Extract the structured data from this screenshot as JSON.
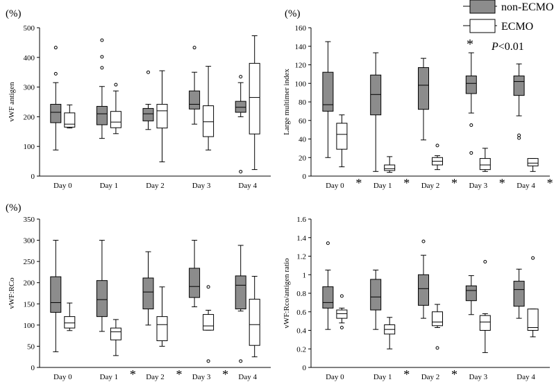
{
  "legend": {
    "items": [
      {
        "label": "non-ECMO",
        "fill": "#8c8c8c"
      },
      {
        "label": "ECMO",
        "fill": "#ffffff"
      }
    ],
    "p_note": "P<0.01",
    "p_note_italic": "P",
    "p_note_rest": "<0.01",
    "sig_marker": "*"
  },
  "colors": {
    "non_ecmo": "#8c8c8c",
    "ecmo": "#ffffff",
    "stroke": "#000000"
  },
  "chart_data": [
    {
      "type": "box",
      "ylabel": "vWF antigen",
      "unit_label": "(%)",
      "ylim": [
        0,
        500
      ],
      "yticks": [
        0,
        100,
        200,
        300,
        400,
        500
      ],
      "categories": [
        "Day 0",
        "Day 1",
        "Day 2",
        "Day 3",
        "Day 4"
      ],
      "significant": [
        false,
        false,
        false,
        false,
        false
      ],
      "series": [
        {
          "name": "non-ECMO",
          "boxes": [
            {
              "min": 88,
              "q1": 180,
              "median": 215,
              "q3": 242,
              "max": 315,
              "outliers": [
                345,
                433
              ]
            },
            {
              "min": 127,
              "q1": 173,
              "median": 210,
              "q3": 235,
              "max": 302,
              "outliers": [
                365,
                402,
                458
              ]
            },
            {
              "min": 157,
              "q1": 186,
              "median": 210,
              "q3": 228,
              "max": 242,
              "outliers": [
                350
              ]
            },
            {
              "min": 175,
              "q1": 226,
              "median": 242,
              "q3": 287,
              "max": 350,
              "outliers": [
                433
              ]
            },
            {
              "min": 200,
              "q1": 215,
              "median": 232,
              "q3": 252,
              "max": 315,
              "outliers": [
                335,
                15
              ]
            }
          ]
        },
        {
          "name": "ECMO",
          "boxes": [
            {
              "min": 162,
              "q1": 165,
              "median": 175,
              "q3": 213,
              "max": 240,
              "outliers": []
            },
            {
              "min": 143,
              "q1": 163,
              "median": 182,
              "q3": 218,
              "max": 287,
              "outliers": [
                308
              ]
            },
            {
              "min": 48,
              "q1": 162,
              "median": 220,
              "q3": 242,
              "max": 355,
              "outliers": []
            },
            {
              "min": 88,
              "q1": 133,
              "median": 183,
              "q3": 237,
              "max": 370,
              "outliers": []
            },
            {
              "min": 22,
              "q1": 142,
              "median": 265,
              "q3": 380,
              "max": 473,
              "outliers": []
            }
          ]
        }
      ]
    },
    {
      "type": "box",
      "ylabel": "Large multimer index",
      "unit_label": "(%)",
      "ylim": [
        0,
        160
      ],
      "yticks": [
        0,
        20,
        40,
        60,
        80,
        100,
        120,
        140,
        160
      ],
      "categories": [
        "Day 0",
        "Day 1",
        "Day 2",
        "Day 3",
        "Day 4"
      ],
      "significant": [
        true,
        true,
        true,
        true,
        true
      ],
      "series": [
        {
          "name": "non-ECMO",
          "boxes": [
            {
              "min": 20,
              "q1": 70,
              "median": 77,
              "q3": 112,
              "max": 145,
              "outliers": []
            },
            {
              "min": 5,
              "q1": 66,
              "median": 88,
              "q3": 109,
              "max": 133,
              "outliers": []
            },
            {
              "min": 39,
              "q1": 72,
              "median": 98,
              "q3": 117,
              "max": 127,
              "outliers": []
            },
            {
              "min": 68,
              "q1": 89,
              "median": 100,
              "q3": 108,
              "max": 133,
              "outliers": [
                55,
                25
              ]
            },
            {
              "min": 65,
              "q1": 87,
              "median": 102,
              "q3": 108,
              "max": 121,
              "outliers": [
                44,
                41
              ]
            }
          ]
        },
        {
          "name": "ECMO",
          "boxes": [
            {
              "min": 10,
              "q1": 29,
              "median": 45,
              "q3": 57,
              "max": 66,
              "outliers": []
            },
            {
              "min": 4,
              "q1": 6,
              "median": 8,
              "q3": 12,
              "max": 21,
              "outliers": []
            },
            {
              "min": 7,
              "q1": 12,
              "median": 16,
              "q3": 20,
              "max": 22,
              "outliers": [
                33
              ]
            },
            {
              "min": 5,
              "q1": 7,
              "median": 12,
              "q3": 19,
              "max": 30,
              "outliers": []
            },
            {
              "min": 5,
              "q1": 11,
              "median": 14,
              "q3": 19,
              "max": 19,
              "outliers": []
            }
          ]
        }
      ]
    },
    {
      "type": "box",
      "ylabel": "vWF:RCo",
      "unit_label": "(%)",
      "ylim": [
        0,
        350
      ],
      "yticks": [
        0,
        50,
        100,
        150,
        200,
        250,
        300,
        350
      ],
      "categories": [
        "Day 0",
        "Day 1",
        "Day 2",
        "Day 3",
        "Day 4"
      ],
      "significant": [
        false,
        true,
        true,
        true,
        false
      ],
      "series": [
        {
          "name": "non-ECMO",
          "boxes": [
            {
              "min": 37,
              "q1": 130,
              "median": 153,
              "q3": 214,
              "max": 300,
              "outliers": []
            },
            {
              "min": 85,
              "q1": 120,
              "median": 160,
              "q3": 205,
              "max": 300,
              "outliers": []
            },
            {
              "min": 100,
              "q1": 138,
              "median": 178,
              "q3": 211,
              "max": 273,
              "outliers": []
            },
            {
              "min": 143,
              "q1": 165,
              "median": 191,
              "q3": 234,
              "max": 300,
              "outliers": []
            },
            {
              "min": 133,
              "q1": 138,
              "median": 194,
              "q3": 216,
              "max": 288,
              "outliers": [
                15
              ]
            }
          ]
        },
        {
          "name": "ECMO",
          "boxes": [
            {
              "min": 87,
              "q1": 93,
              "median": 105,
              "q3": 120,
              "max": 152,
              "outliers": []
            },
            {
              "min": 28,
              "q1": 65,
              "median": 84,
              "q3": 93,
              "max": 113,
              "outliers": []
            },
            {
              "min": 50,
              "q1": 63,
              "median": 101,
              "q3": 120,
              "max": 190,
              "outliers": []
            },
            {
              "min": 88,
              "q1": 88,
              "median": 98,
              "q3": 125,
              "max": 135,
              "outliers": [
                190,
                15
              ]
            },
            {
              "min": 25,
              "q1": 52,
              "median": 101,
              "q3": 161,
              "max": 215,
              "outliers": []
            }
          ]
        }
      ]
    },
    {
      "type": "box",
      "ylabel": "vWF:Rco/antigen ratio",
      "unit_label": "",
      "ylim": [
        0,
        1.6
      ],
      "yticks": [
        0,
        0.2,
        0.4,
        0.6,
        0.8,
        1,
        1.2,
        1.4,
        1.6
      ],
      "categories": [
        "Day 0",
        "Day 1",
        "Day 2",
        "Day 3",
        "Day 4"
      ],
      "significant": [
        false,
        true,
        true,
        false,
        false
      ],
      "series": [
        {
          "name": "non-ECMO",
          "boxes": [
            {
              "min": 0.41,
              "q1": 0.64,
              "median": 0.7,
              "q3": 0.87,
              "max": 1.05,
              "outliers": [
                1.34
              ]
            },
            {
              "min": 0.41,
              "q1": 0.62,
              "median": 0.76,
              "q3": 0.95,
              "max": 1.05,
              "outliers": []
            },
            {
              "min": 0.53,
              "q1": 0.67,
              "median": 0.85,
              "q3": 1.0,
              "max": 1.21,
              "outliers": [
                1.36
              ]
            },
            {
              "min": 0.57,
              "q1": 0.72,
              "median": 0.83,
              "q3": 0.88,
              "max": 0.99,
              "outliers": []
            },
            {
              "min": 0.53,
              "q1": 0.66,
              "median": 0.84,
              "q3": 0.93,
              "max": 1.06,
              "outliers": []
            }
          ]
        },
        {
          "name": "ECMO",
          "boxes": [
            {
              "min": 0.48,
              "q1": 0.53,
              "median": 0.58,
              "q3": 0.62,
              "max": 0.64,
              "outliers": [
                0.77,
                0.43
              ]
            },
            {
              "min": 0.2,
              "q1": 0.36,
              "median": 0.41,
              "q3": 0.46,
              "max": 0.54,
              "outliers": []
            },
            {
              "min": 0.43,
              "q1": 0.45,
              "median": 0.49,
              "q3": 0.6,
              "max": 0.68,
              "outliers": [
                0.21
              ]
            },
            {
              "min": 0.16,
              "q1": 0.4,
              "median": 0.49,
              "q3": 0.56,
              "max": 0.58,
              "outliers": [
                1.14
              ]
            },
            {
              "min": 0.33,
              "q1": 0.4,
              "median": 0.43,
              "q3": 0.63,
              "max": 0.63,
              "outliers": [
                1.18
              ]
            }
          ]
        }
      ]
    }
  ]
}
